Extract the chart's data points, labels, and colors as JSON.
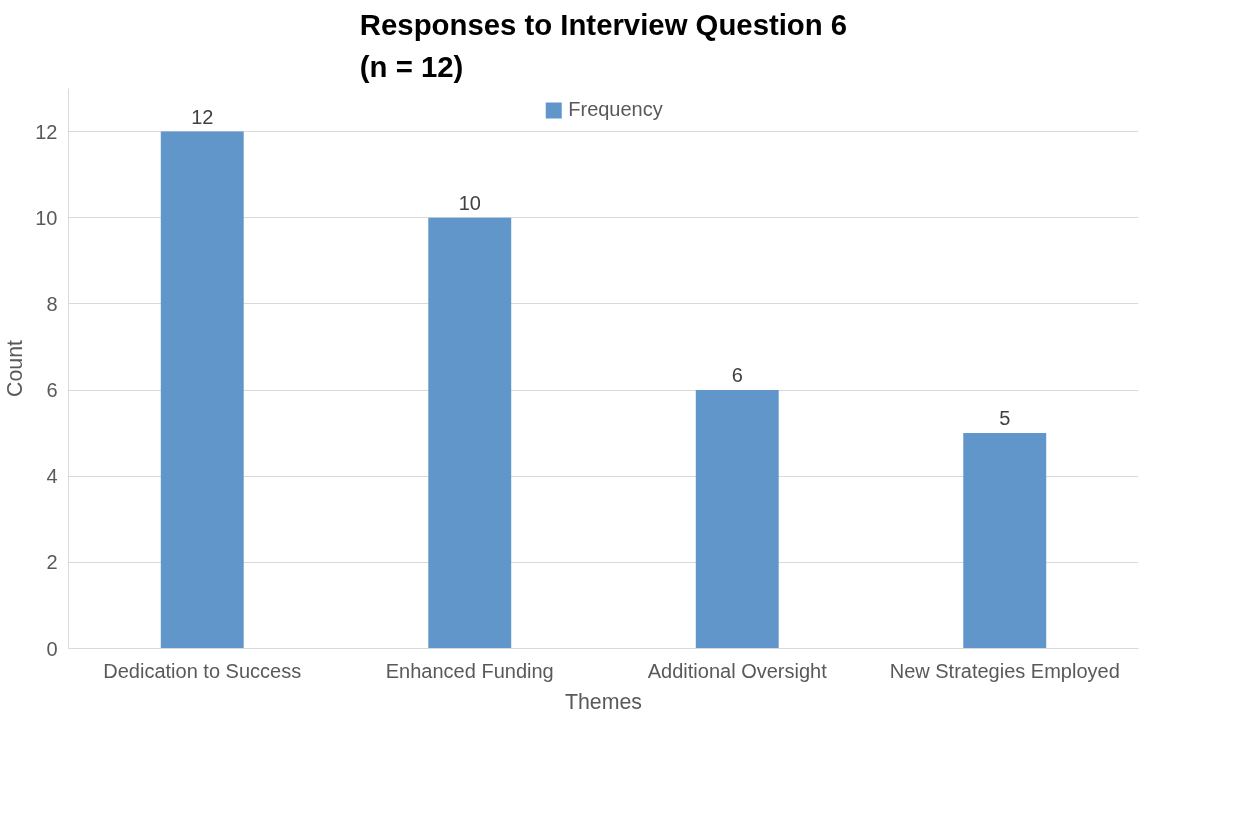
{
  "chart_data": {
    "type": "bar",
    "title": "Responses to Interview Question 6\n(n = 12)",
    "xlabel": "Themes",
    "ylabel": "Count",
    "categories": [
      "Dedication to Success",
      "Enhanced Funding",
      "Additional Oversight",
      "New Strategies Employed"
    ],
    "series": [
      {
        "name": "Frequency",
        "color": "#6096c9",
        "values": [
          12,
          10,
          6,
          5
        ]
      }
    ],
    "ylim": [
      0,
      13
    ],
    "yticks": [
      0,
      2,
      4,
      6,
      8,
      10,
      12
    ],
    "grid": "y",
    "legend": "top",
    "data_labels": true
  }
}
